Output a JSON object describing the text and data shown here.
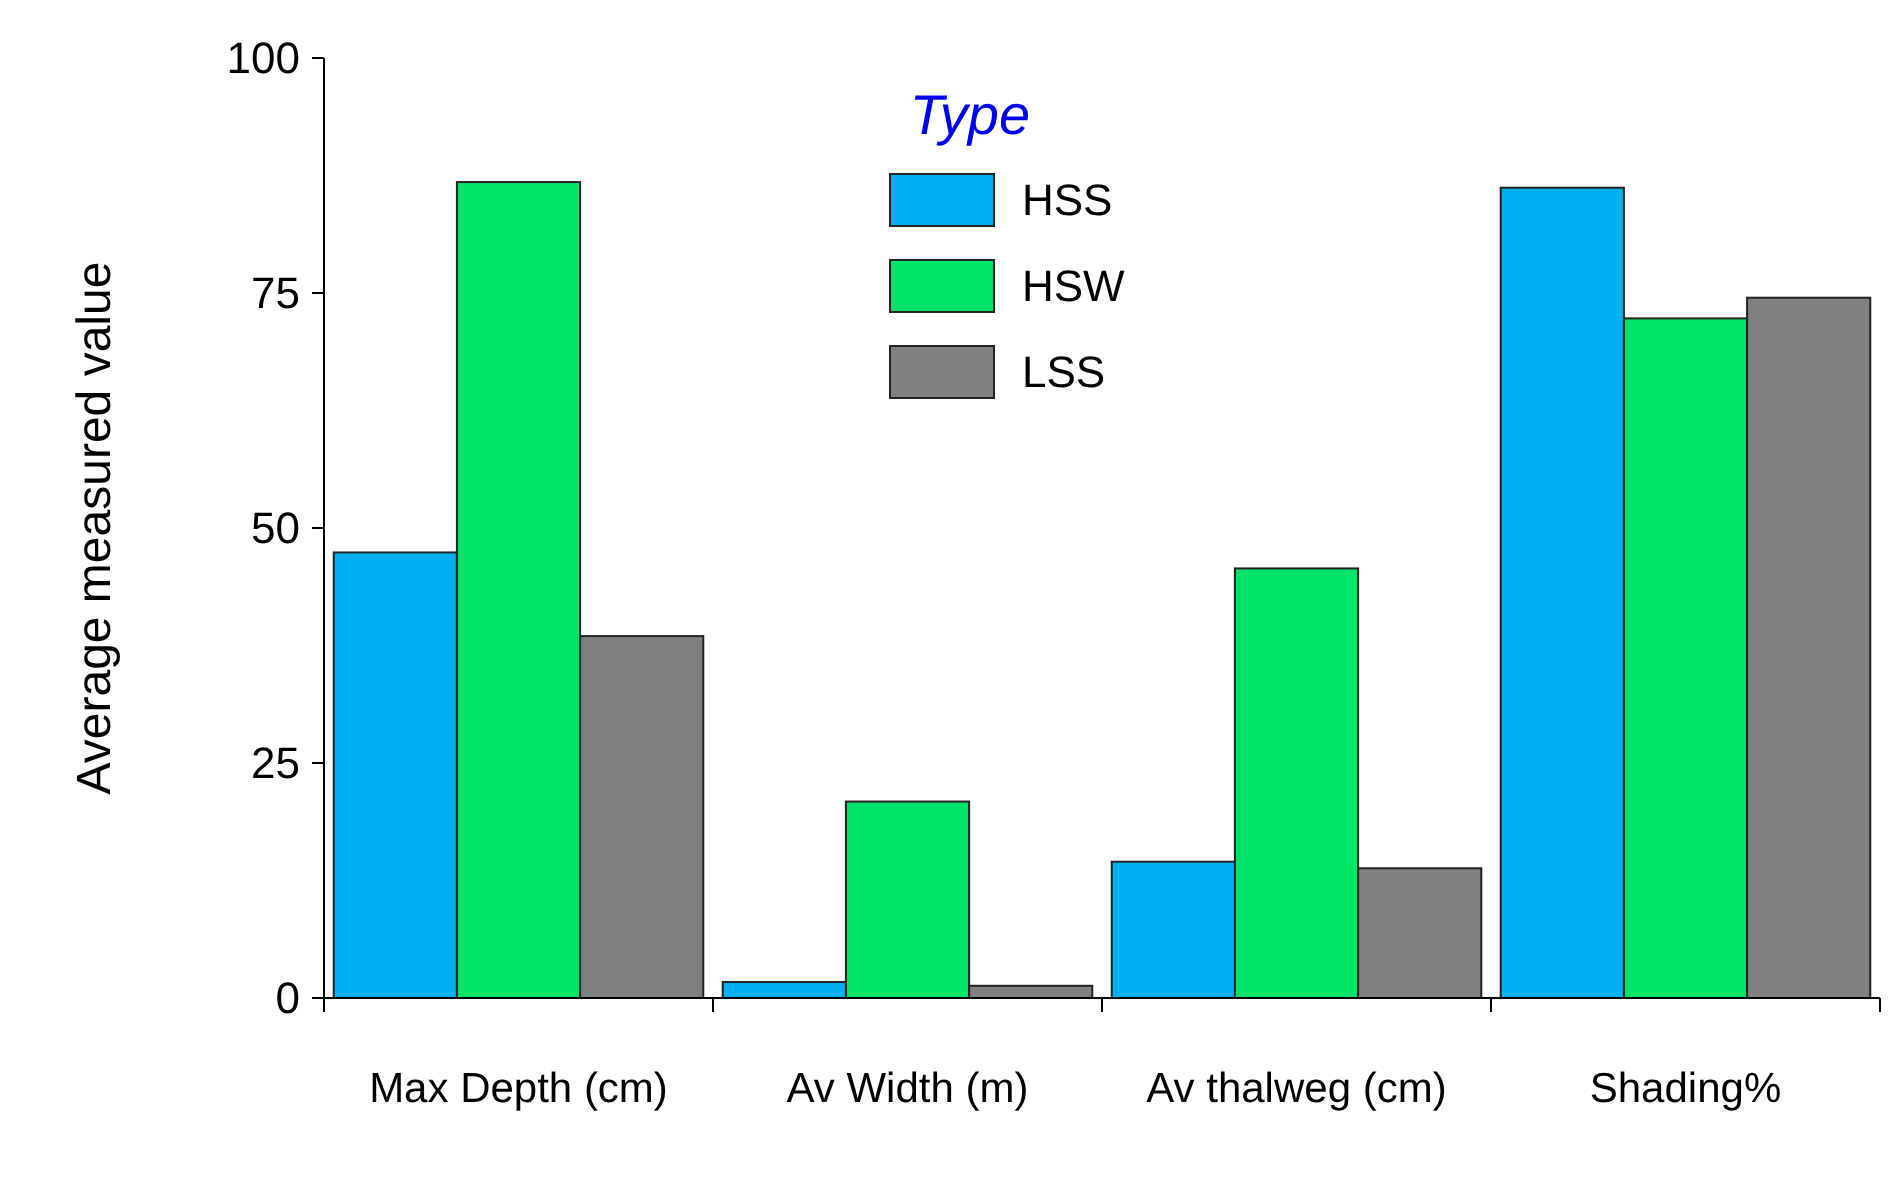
{
  "chart_data": {
    "type": "bar",
    "ylabel": "Average measured value",
    "legend_title": "Type",
    "categories": [
      "Max Depth (cm)",
      "Av Width (m)",
      "Av thalweg (cm)",
      "Shading%"
    ],
    "series": [
      {
        "name": "HSS",
        "color": "#00b0f0",
        "values": [
          47.4,
          1.7,
          14.5,
          86.2
        ]
      },
      {
        "name": "HSW",
        "color": "#00e36b",
        "values": [
          86.8,
          20.9,
          45.7,
          72.3
        ]
      },
      {
        "name": "LSS",
        "color": "#808080",
        "values": [
          38.5,
          1.3,
          13.8,
          74.5
        ]
      }
    ],
    "ylim": [
      0,
      100
    ],
    "yticks": [
      0,
      25,
      50,
      75,
      100
    ],
    "grid": false,
    "legend": "top"
  }
}
